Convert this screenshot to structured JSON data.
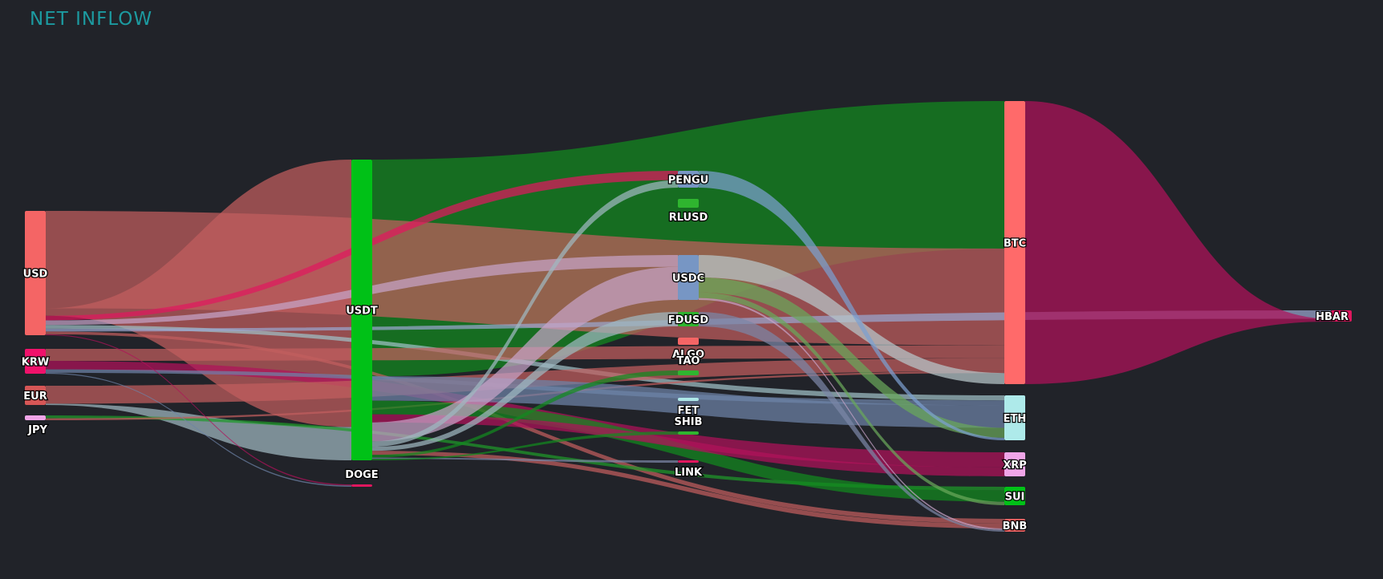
{
  "title": "NET INFLOW",
  "chart_data": {
    "type": "sankey",
    "nodes": [
      {
        "id": "USD",
        "color": "#f46565"
      },
      {
        "id": "KRW",
        "color": "#f0126b"
      },
      {
        "id": "EUR",
        "color": "#d65656"
      },
      {
        "id": "JPY",
        "color": "#f0a5e8"
      },
      {
        "id": "USDT",
        "color": "#00c117"
      },
      {
        "id": "DOGE",
        "color": "#e0175e"
      },
      {
        "id": "PENGU",
        "color": "#7796c4"
      },
      {
        "id": "RLUSD",
        "color": "#2fb52f"
      },
      {
        "id": "USDC",
        "color": "#7796c4"
      },
      {
        "id": "FDUSD",
        "color": "#2fb52f"
      },
      {
        "id": "ALGO",
        "color": "#f46565"
      },
      {
        "id": "TAO",
        "color": "#2fb52f"
      },
      {
        "id": "FET",
        "color": "#aee8e8"
      },
      {
        "id": "SHIB",
        "color": "#2fb52f"
      },
      {
        "id": "LINK",
        "color": "#e0175e"
      },
      {
        "id": "BTC",
        "color": "#ff6a6a"
      },
      {
        "id": "ETH",
        "color": "#aeeaea"
      },
      {
        "id": "XRP",
        "color": "#f0a5e8"
      },
      {
        "id": "SUI",
        "color": "#00c117"
      },
      {
        "id": "BNB",
        "color": "#f46565"
      },
      {
        "id": "HBAR",
        "color": "#e0175e"
      }
    ],
    "links": [
      {
        "source": "USDT",
        "target": "BTC",
        "value": 160,
        "color": "#128a1f"
      },
      {
        "source": "USD",
        "target": "BTC",
        "value": 105,
        "color": "#c25e5e"
      },
      {
        "source": "USD",
        "target": "USDT",
        "value": 8,
        "color": "#c25e5e"
      },
      {
        "source": "USD",
        "target": "PENGU",
        "value": 5,
        "color": "#e0175e"
      },
      {
        "source": "USD",
        "target": "USDC",
        "value": 5,
        "color": "#c6a4c8"
      },
      {
        "source": "USD",
        "target": "ETH",
        "value": 4,
        "color": "#9fc1c6"
      },
      {
        "source": "USD",
        "target": "HBAR",
        "value": 3,
        "color": "#9aa6cf"
      },
      {
        "source": "USD",
        "target": "BNB",
        "value": 3,
        "color": "#c25e5e"
      },
      {
        "source": "KRW",
        "target": "BTC",
        "value": 14,
        "color": "#c25e5e"
      },
      {
        "source": "KRW",
        "target": "XRP",
        "value": 10,
        "color": "#b0125a"
      },
      {
        "source": "KRW",
        "target": "ETH",
        "value": 4,
        "color": "#6d84a8"
      },
      {
        "source": "EUR",
        "target": "BTC",
        "value": 14,
        "color": "#c25e5e"
      },
      {
        "source": "EUR",
        "target": "USDT",
        "value": 1,
        "color": "#9fb9c0"
      },
      {
        "source": "JPY",
        "target": "SUI",
        "value": 3,
        "color": "#1f9a2a"
      },
      {
        "source": "JPY",
        "target": "BTC",
        "value": 2,
        "color": "#c25e5e"
      },
      {
        "source": "USDT",
        "target": "ETH",
        "value": 18,
        "color": "#6d84a8"
      },
      {
        "source": "USDT",
        "target": "SUI",
        "value": 10,
        "color": "#128a1f"
      },
      {
        "source": "USDT",
        "target": "XRP",
        "value": 6,
        "color": "#b0125a"
      },
      {
        "source": "USDT",
        "target": "USDC",
        "value": 14,
        "color": "#c6a4c8"
      },
      {
        "source": "USDT",
        "target": "PENGU",
        "value": 4,
        "color": "#9fb9c0"
      },
      {
        "source": "USDT",
        "target": "FDUSD",
        "value": 3,
        "color": "#9fb9c0"
      },
      {
        "source": "USDT",
        "target": "BNB",
        "value": 3,
        "color": "#c25e5e"
      },
      {
        "source": "USDT",
        "target": "TAO",
        "value": 2,
        "color": "#128a1f"
      },
      {
        "source": "USDT",
        "target": "LINK",
        "value": 1,
        "color": "#7c86a6"
      },
      {
        "source": "USDT",
        "target": "SHIB",
        "value": 1,
        "color": "#128a1f"
      },
      {
        "source": "USDC",
        "target": "BTC",
        "value": 12,
        "color": "#b9c7cb"
      },
      {
        "source": "USDC",
        "target": "ETH",
        "value": 8,
        "color": "#6aa85a"
      },
      {
        "source": "USDC",
        "target": "SUI",
        "value": 3,
        "color": "#6aa85a"
      },
      {
        "source": "USDC",
        "target": "BNB",
        "value": 1,
        "color": "#c6a4c8"
      },
      {
        "source": "PENGU",
        "target": "ETH",
        "value": 2,
        "color": "#7c9fd0"
      },
      {
        "source": "FDUSD",
        "target": "BNB",
        "value": 1,
        "color": "#7c86a6"
      },
      {
        "source": "BTC",
        "target": "HBAR",
        "value": 1,
        "color": "#b0125a"
      },
      {
        "source": "USD",
        "target": "DOGE",
        "value": 1,
        "color": "#b0125a"
      },
      {
        "source": "KRW",
        "target": "DOGE",
        "value": 1,
        "color": "#6d84a8"
      }
    ]
  }
}
